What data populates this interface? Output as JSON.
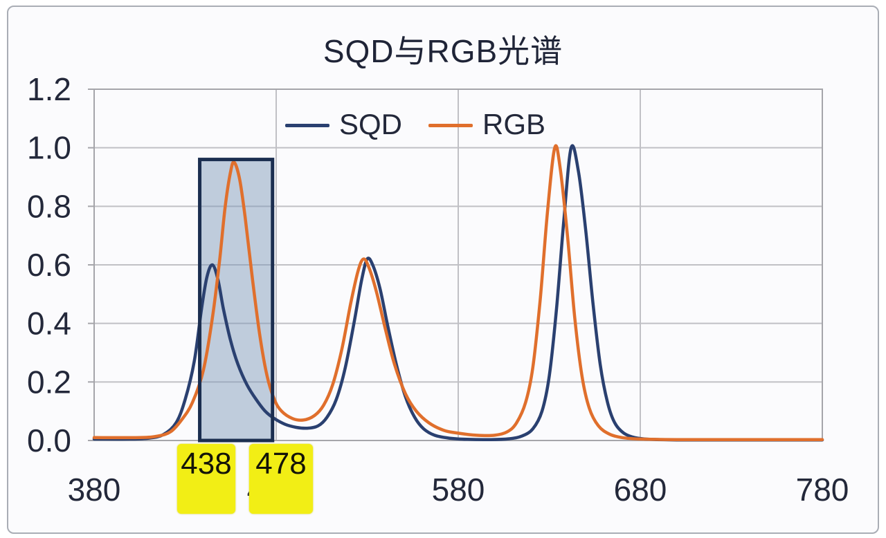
{
  "chart_data": {
    "type": "line",
    "title": "SQD与RGB光谱",
    "xlabel": "",
    "ylabel": "",
    "xlim": [
      380,
      780
    ],
    "ylim": [
      0,
      1.2
    ],
    "grid": true,
    "legend_position": "top-center",
    "x_ticks": [
      {
        "v": 380,
        "label": "380"
      },
      {
        "v": 480,
        "label": "480"
      },
      {
        "v": 580,
        "label": "580"
      },
      {
        "v": 680,
        "label": "680"
      },
      {
        "v": 780,
        "label": "780"
      }
    ],
    "y_ticks": [
      {
        "v": 0.0,
        "label": "0.0"
      },
      {
        "v": 0.2,
        "label": "0.2"
      },
      {
        "v": 0.4,
        "label": "0.4"
      },
      {
        "v": 0.6,
        "label": "0.6"
      },
      {
        "v": 0.8,
        "label": "0.8"
      },
      {
        "v": 1.0,
        "label": "1.0"
      },
      {
        "v": 1.2,
        "label": "1.2"
      }
    ],
    "series": [
      {
        "name": "SQD",
        "color": "#2a4070",
        "points": [
          [
            380,
            0.005
          ],
          [
            400,
            0.005
          ],
          [
            410,
            0.008
          ],
          [
            418,
            0.02
          ],
          [
            425,
            0.06
          ],
          [
            430,
            0.14
          ],
          [
            435,
            0.27
          ],
          [
            439,
            0.45
          ],
          [
            442,
            0.56
          ],
          [
            445,
            0.6
          ],
          [
            448,
            0.55
          ],
          [
            451,
            0.45
          ],
          [
            455,
            0.34
          ],
          [
            459,
            0.26
          ],
          [
            464,
            0.19
          ],
          [
            469,
            0.14
          ],
          [
            474,
            0.1
          ],
          [
            479,
            0.075
          ],
          [
            485,
            0.055
          ],
          [
            491,
            0.045
          ],
          [
            497,
            0.042
          ],
          [
            503,
            0.05
          ],
          [
            508,
            0.08
          ],
          [
            513,
            0.14
          ],
          [
            518,
            0.25
          ],
          [
            523,
            0.41
          ],
          [
            527,
            0.55
          ],
          [
            530,
            0.62
          ],
          [
            533,
            0.6
          ],
          [
            537,
            0.52
          ],
          [
            541,
            0.4
          ],
          [
            546,
            0.26
          ],
          [
            551,
            0.15
          ],
          [
            556,
            0.08
          ],
          [
            561,
            0.04
          ],
          [
            567,
            0.018
          ],
          [
            575,
            0.008
          ],
          [
            585,
            0.004
          ],
          [
            598,
            0.003
          ],
          [
            608,
            0.006
          ],
          [
            615,
            0.015
          ],
          [
            621,
            0.04
          ],
          [
            626,
            0.1
          ],
          [
            630,
            0.22
          ],
          [
            634,
            0.45
          ],
          [
            638,
            0.75
          ],
          [
            642,
            1.0
          ],
          [
            646,
            0.92
          ],
          [
            650,
            0.72
          ],
          [
            654,
            0.47
          ],
          [
            658,
            0.26
          ],
          [
            662,
            0.13
          ],
          [
            666,
            0.06
          ],
          [
            671,
            0.025
          ],
          [
            677,
            0.01
          ],
          [
            685,
            0.004
          ],
          [
            700,
            0.002
          ],
          [
            740,
            0.002
          ],
          [
            780,
            0.002
          ]
        ]
      },
      {
        "name": "RGB",
        "color": "#e06f2c",
        "points": [
          [
            380,
            0.01
          ],
          [
            405,
            0.01
          ],
          [
            415,
            0.015
          ],
          [
            422,
            0.03
          ],
          [
            428,
            0.07
          ],
          [
            434,
            0.13
          ],
          [
            440,
            0.24
          ],
          [
            445,
            0.42
          ],
          [
            449,
            0.62
          ],
          [
            452,
            0.8
          ],
          [
            455,
            0.92
          ],
          [
            457,
            0.95
          ],
          [
            460,
            0.89
          ],
          [
            463,
            0.76
          ],
          [
            467,
            0.55
          ],
          [
            471,
            0.36
          ],
          [
            475,
            0.22
          ],
          [
            479,
            0.14
          ],
          [
            483,
            0.1
          ],
          [
            489,
            0.075
          ],
          [
            495,
            0.07
          ],
          [
            501,
            0.085
          ],
          [
            506,
            0.12
          ],
          [
            511,
            0.19
          ],
          [
            516,
            0.31
          ],
          [
            521,
            0.47
          ],
          [
            525,
            0.58
          ],
          [
            528,
            0.62
          ],
          [
            531,
            0.59
          ],
          [
            535,
            0.51
          ],
          [
            540,
            0.38
          ],
          [
            545,
            0.26
          ],
          [
            551,
            0.16
          ],
          [
            557,
            0.1
          ],
          [
            564,
            0.06
          ],
          [
            572,
            0.035
          ],
          [
            580,
            0.025
          ],
          [
            590,
            0.018
          ],
          [
            600,
            0.018
          ],
          [
            607,
            0.03
          ],
          [
            612,
            0.06
          ],
          [
            617,
            0.13
          ],
          [
            621,
            0.25
          ],
          [
            625,
            0.48
          ],
          [
            629,
            0.78
          ],
          [
            633,
            1.0
          ],
          [
            636,
            0.93
          ],
          [
            640,
            0.7
          ],
          [
            644,
            0.42
          ],
          [
            648,
            0.22
          ],
          [
            652,
            0.11
          ],
          [
            657,
            0.05
          ],
          [
            663,
            0.022
          ],
          [
            670,
            0.01
          ],
          [
            680,
            0.005
          ],
          [
            700,
            0.003
          ],
          [
            740,
            0.003
          ],
          [
            780,
            0.003
          ]
        ]
      }
    ],
    "highlight_region": {
      "x_start": 438,
      "x_end": 478,
      "y_bottom": 0,
      "y_top": 0.96,
      "fill": "rgba(125,152,184,0.48)",
      "border_color": "#1b2e50"
    },
    "annotations": [
      {
        "label": "438",
        "background": "#f2ee15"
      },
      {
        "label": "478",
        "background": "#f2ee15"
      }
    ]
  }
}
